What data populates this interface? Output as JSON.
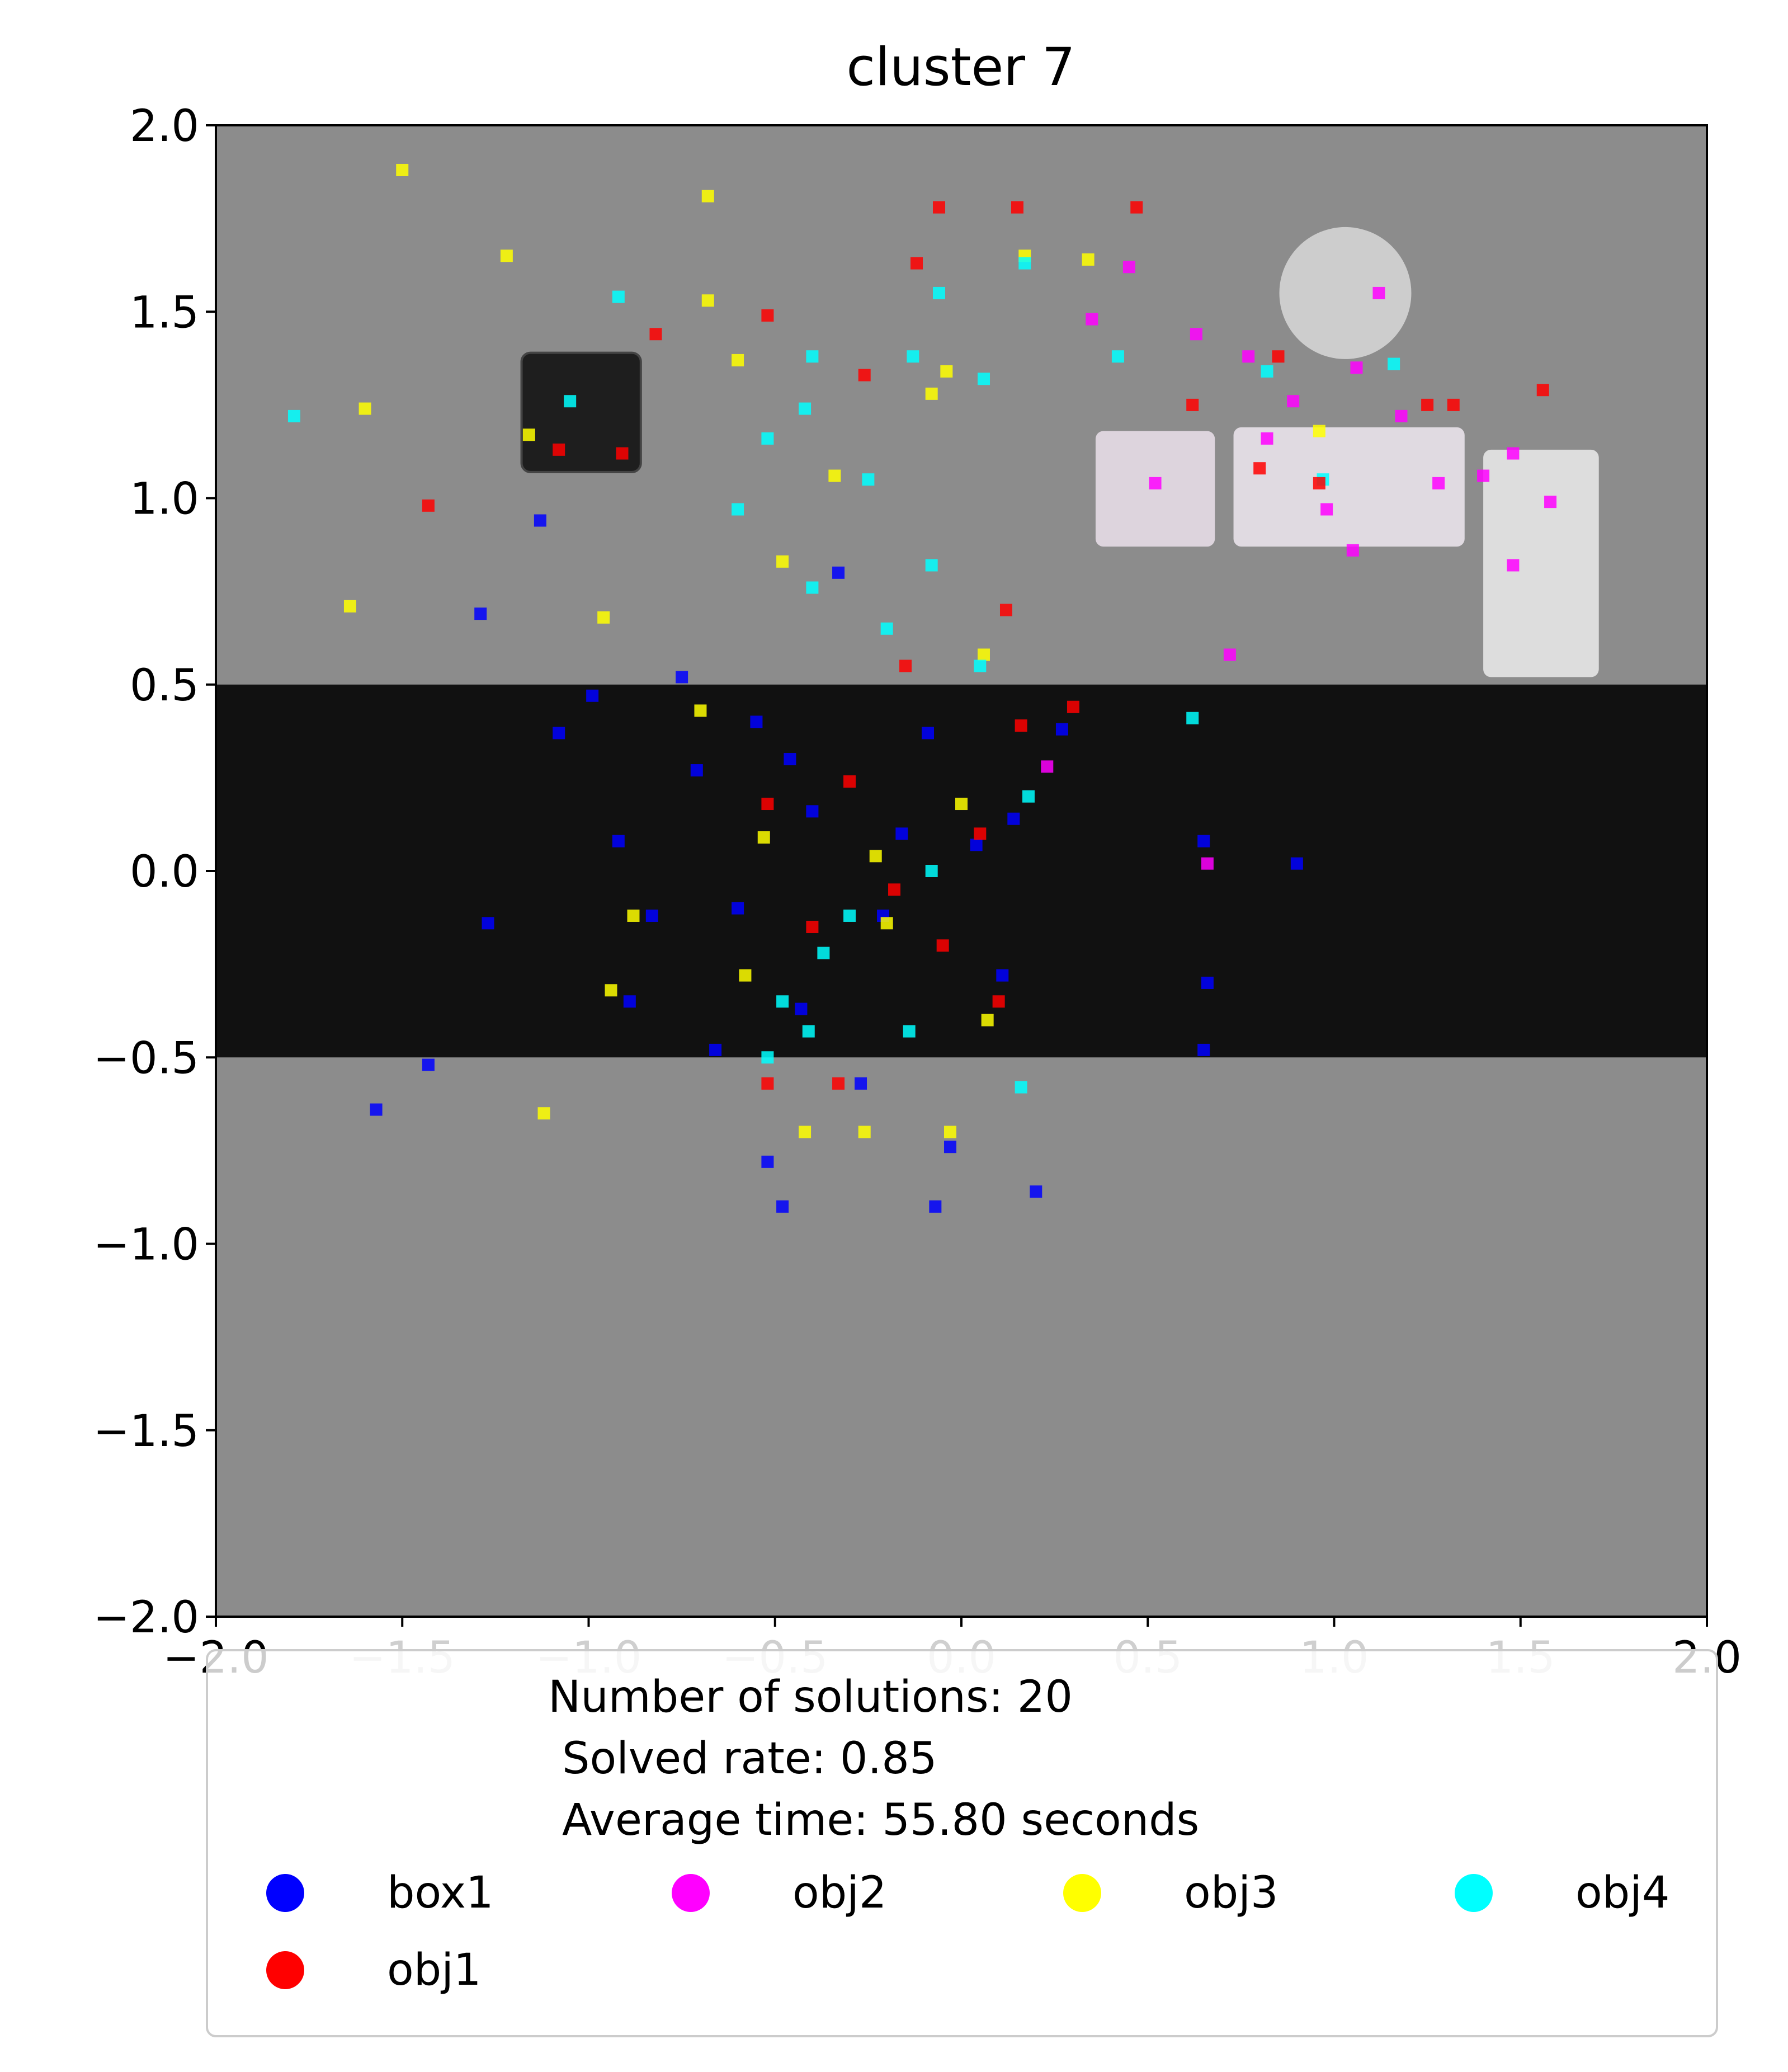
{
  "chart_data": {
    "type": "scatter",
    "title": "cluster 7",
    "xlabel": "",
    "ylabel": "",
    "xlim": [
      -2.0,
      2.0
    ],
    "ylim": [
      -2.0,
      2.0
    ],
    "x_ticks": [
      "−2.0",
      "−1.5",
      "−1.0",
      "−0.5",
      "0.0",
      "0.5",
      "1.0",
      "1.5",
      "2.0"
    ],
    "y_ticks": [
      "2.0",
      "1.5",
      "1.0",
      "0.5",
      "0.0",
      "−0.5",
      "−1.0",
      "−1.5",
      "−2.0"
    ],
    "x_tick_values": [
      -2.0,
      -1.5,
      -1.0,
      -0.5,
      0.0,
      0.5,
      1.0,
      1.5,
      2.0
    ],
    "y_tick_values": [
      2.0,
      1.5,
      1.0,
      0.5,
      0.0,
      -0.5,
      -1.0,
      -1.5,
      -2.0
    ],
    "grid": false,
    "background": {
      "floor_color": "#8c8c8c",
      "table_color": "#111111",
      "table_y_range": [
        -0.5,
        0.5
      ]
    },
    "legend": {
      "placement": "below",
      "summary_lines": [
        "Number of solutions: 20",
        "Solved rate: 0.85",
        "Average time: 55.80 seconds"
      ],
      "entries": [
        {
          "name": "box1",
          "color": "#0000ff"
        },
        {
          "name": "obj2",
          "color": "#ff00ff"
        },
        {
          "name": "obj3",
          "color": "#ffff00"
        },
        {
          "name": "obj4",
          "color": "#00ffff"
        },
        {
          "name": "obj1",
          "color": "#ff0000"
        }
      ]
    },
    "series": [
      {
        "name": "box1",
        "color": "#0000ff",
        "points": [
          [
            -1.57,
            -0.64
          ],
          [
            -1.43,
            -0.52
          ],
          [
            -1.27,
            -0.14
          ],
          [
            -1.13,
            0.94
          ],
          [
            -1.08,
            0.37
          ],
          [
            -0.99,
            0.47
          ],
          [
            -0.89,
            -0.35
          ],
          [
            -0.83,
            -0.12
          ],
          [
            -0.75,
            0.52
          ],
          [
            -0.71,
            0.27
          ],
          [
            -0.66,
            -0.48
          ],
          [
            -0.6,
            -0.1
          ],
          [
            -0.55,
            0.4
          ],
          [
            -0.52,
            -0.78
          ],
          [
            -0.48,
            -0.9
          ],
          [
            -0.43,
            -0.37
          ],
          [
            -0.4,
            0.16
          ],
          [
            -0.33,
            0.8
          ],
          [
            -0.27,
            -0.57
          ],
          [
            -0.21,
            -0.12
          ],
          [
            -0.16,
            0.1
          ],
          [
            -0.07,
            -0.9
          ],
          [
            -0.03,
            -0.74
          ],
          [
            0.04,
            0.07
          ],
          [
            0.11,
            -0.28
          ],
          [
            0.14,
            0.14
          ],
          [
            0.2,
            -0.86
          ],
          [
            0.27,
            0.38
          ],
          [
            0.65,
            0.08
          ],
          [
            0.65,
            -0.48
          ],
          [
            0.66,
            -0.3
          ],
          [
            0.9,
            0.02
          ],
          [
            -1.29,
            0.69
          ],
          [
            -0.92,
            0.08
          ],
          [
            -0.46,
            0.3
          ],
          [
            -0.09,
            0.37
          ]
        ]
      },
      {
        "name": "obj2",
        "color": "#ff00ff",
        "points": [
          [
            0.45,
            1.62
          ],
          [
            0.63,
            1.44
          ],
          [
            0.77,
            1.38
          ],
          [
            0.89,
            1.26
          ],
          [
            0.98,
            0.97
          ],
          [
            1.06,
            1.35
          ],
          [
            1.18,
            1.22
          ],
          [
            1.28,
            1.04
          ],
          [
            1.4,
            1.06
          ],
          [
            1.48,
            1.12
          ],
          [
            1.58,
            0.99
          ],
          [
            1.48,
            0.82
          ],
          [
            1.05,
            0.86
          ],
          [
            0.72,
            0.58
          ],
          [
            0.66,
            0.02
          ],
          [
            0.23,
            0.28
          ],
          [
            0.52,
            1.04
          ],
          [
            0.35,
            1.48
          ],
          [
            0.82,
            1.16
          ],
          [
            1.12,
            1.55
          ]
        ]
      },
      {
        "name": "obj3",
        "color": "#ffff00",
        "points": [
          [
            -1.5,
            1.88
          ],
          [
            -1.22,
            1.65
          ],
          [
            -1.6,
            1.24
          ],
          [
            -1.16,
            1.17
          ],
          [
            -1.64,
            0.71
          ],
          [
            -0.96,
            0.68
          ],
          [
            -0.68,
            1.53
          ],
          [
            -0.6,
            1.37
          ],
          [
            -0.68,
            1.81
          ],
          [
            -0.7,
            0.43
          ],
          [
            -0.94,
            -0.32
          ],
          [
            -0.88,
            -0.12
          ],
          [
            -0.53,
            0.09
          ],
          [
            -0.42,
            -0.7
          ],
          [
            -0.26,
            -0.7
          ],
          [
            -0.03,
            -0.7
          ],
          [
            -1.12,
            -0.65
          ],
          [
            -0.23,
            0.04
          ],
          [
            0.0,
            0.18
          ],
          [
            0.06,
            0.58
          ],
          [
            0.17,
            1.65
          ],
          [
            0.34,
            1.64
          ],
          [
            -0.08,
            1.28
          ],
          [
            -0.2,
            -0.14
          ],
          [
            0.07,
            -0.4
          ],
          [
            -0.48,
            0.83
          ],
          [
            0.96,
            1.18
          ],
          [
            -0.04,
            1.34
          ],
          [
            -0.34,
            1.06
          ],
          [
            -0.58,
            -0.28
          ]
        ]
      },
      {
        "name": "obj4",
        "color": "#00ffff",
        "points": [
          [
            -1.79,
            1.22
          ],
          [
            -1.05,
            1.26
          ],
          [
            -0.92,
            1.54
          ],
          [
            -0.52,
            1.16
          ],
          [
            -0.4,
            1.38
          ],
          [
            -0.13,
            1.38
          ],
          [
            -0.06,
            1.55
          ],
          [
            0.06,
            1.32
          ],
          [
            0.17,
            1.63
          ],
          [
            0.42,
            1.38
          ],
          [
            0.82,
            1.34
          ],
          [
            0.97,
            1.05
          ],
          [
            1.16,
            1.36
          ],
          [
            -0.6,
            0.97
          ],
          [
            -0.4,
            0.76
          ],
          [
            -0.2,
            0.65
          ],
          [
            -0.08,
            0.82
          ],
          [
            0.05,
            0.55
          ],
          [
            0.18,
            0.2
          ],
          [
            0.62,
            0.41
          ],
          [
            -0.52,
            -0.5
          ],
          [
            -0.41,
            -0.43
          ],
          [
            -0.3,
            -0.12
          ],
          [
            -0.14,
            -0.43
          ],
          [
            0.16,
            -0.58
          ],
          [
            -0.37,
            -0.22
          ],
          [
            -0.48,
            -0.35
          ],
          [
            -0.08,
            0.0
          ],
          [
            -0.25,
            1.05
          ],
          [
            -0.42,
            1.24
          ]
        ]
      },
      {
        "name": "obj1",
        "color": "#ff0000",
        "points": [
          [
            -1.43,
            0.98
          ],
          [
            -1.08,
            1.13
          ],
          [
            -0.91,
            1.12
          ],
          [
            -0.82,
            1.44
          ],
          [
            -0.52,
            1.49
          ],
          [
            -0.26,
            1.33
          ],
          [
            -0.12,
            1.63
          ],
          [
            -0.06,
            1.78
          ],
          [
            0.15,
            1.78
          ],
          [
            0.47,
            1.78
          ],
          [
            0.62,
            1.25
          ],
          [
            0.85,
            1.38
          ],
          [
            0.96,
            1.04
          ],
          [
            1.25,
            1.25
          ],
          [
            1.32,
            1.25
          ],
          [
            1.56,
            1.29
          ],
          [
            -0.52,
            -0.57
          ],
          [
            -0.33,
            -0.57
          ],
          [
            -0.18,
            -0.05
          ],
          [
            -0.05,
            -0.2
          ],
          [
            0.05,
            0.1
          ],
          [
            0.16,
            0.39
          ],
          [
            0.3,
            0.44
          ],
          [
            -0.3,
            0.24
          ],
          [
            -0.52,
            0.18
          ],
          [
            0.12,
            0.7
          ],
          [
            -0.4,
            -0.15
          ],
          [
            0.1,
            -0.35
          ],
          [
            0.8,
            1.08
          ],
          [
            -0.15,
            0.55
          ]
        ]
      }
    ]
  }
}
